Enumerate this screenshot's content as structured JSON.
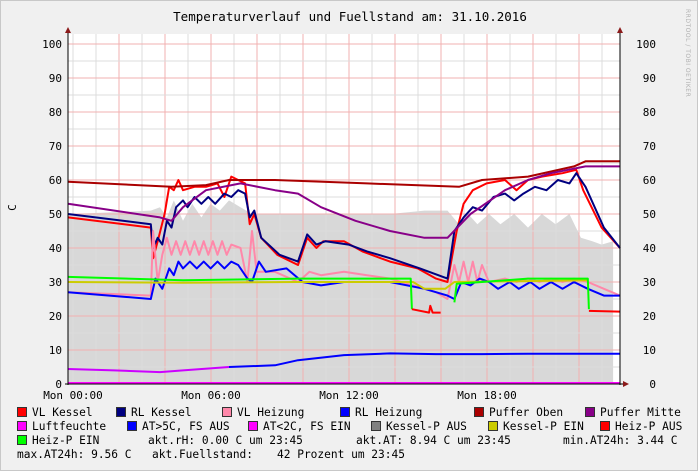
{
  "chart_data": {
    "type": "line",
    "title": "Temperaturverlauf und Fuellstand am: 31.10.2016",
    "ylabel": "C",
    "watermark": "RRDTOOL / TOBI OETIKER",
    "ylim": [
      0,
      100
    ],
    "yticks": [
      "0",
      "10",
      "20",
      "30",
      "40",
      "50",
      "60",
      "70",
      "80",
      "90",
      "100"
    ],
    "xlim_hours": [
      0,
      24
    ],
    "xticks": [
      {
        "h": 0,
        "label": "Mon 00:00"
      },
      {
        "h": 6,
        "label": "Mon 06:00"
      },
      {
        "h": 12,
        "label": "Mon 12:00"
      },
      {
        "h": 18,
        "label": "Mon 18:00"
      }
    ],
    "grid": true,
    "area": {
      "name": "Fuellstand",
      "color": "#d8d8d8",
      "points": [
        [
          0,
          50
        ],
        [
          2,
          50.5
        ],
        [
          3.6,
          51
        ],
        [
          4,
          52
        ],
        [
          4.3,
          49
        ],
        [
          4.6,
          54
        ],
        [
          5,
          48
        ],
        [
          5.4,
          53
        ],
        [
          5.8,
          49
        ],
        [
          6.2,
          53
        ],
        [
          6.6,
          51
        ],
        [
          7,
          54
        ],
        [
          7.5,
          52
        ],
        [
          8,
          50
        ],
        [
          9,
          50
        ],
        [
          10,
          50
        ],
        [
          12,
          50
        ],
        [
          14,
          50
        ],
        [
          15.5,
          51
        ],
        [
          16.5,
          51
        ],
        [
          17,
          47
        ],
        [
          17.4,
          50
        ],
        [
          17.8,
          47
        ],
        [
          18.3,
          50
        ],
        [
          18.8,
          47
        ],
        [
          19.4,
          50
        ],
        [
          20,
          46
        ],
        [
          20.6,
          50
        ],
        [
          21.2,
          47
        ],
        [
          21.8,
          50
        ],
        [
          22.3,
          43
        ],
        [
          22.8,
          42
        ],
        [
          23.2,
          41
        ],
        [
          23.7,
          42
        ]
      ]
    },
    "series": [
      {
        "name": "VL Kessel",
        "color": "#ff0000",
        "points": [
          [
            0,
            49
          ],
          [
            3.6,
            46
          ],
          [
            3.7,
            37
          ],
          [
            3.9,
            42
          ],
          [
            4.2,
            50
          ],
          [
            4.4,
            58
          ],
          [
            4.6,
            57
          ],
          [
            4.8,
            60
          ],
          [
            5,
            57
          ],
          [
            5.5,
            58
          ],
          [
            6,
            58
          ],
          [
            6.5,
            59
          ],
          [
            6.8,
            55
          ],
          [
            7.1,
            61
          ],
          [
            7.4,
            60
          ],
          [
            7.7,
            59
          ],
          [
            7.9,
            47
          ],
          [
            8.1,
            50
          ],
          [
            8.4,
            43
          ],
          [
            9.1,
            38
          ],
          [
            10,
            35
          ],
          [
            10.4,
            43
          ],
          [
            10.8,
            40
          ],
          [
            11.1,
            42
          ],
          [
            12,
            42
          ],
          [
            12.8,
            39
          ],
          [
            14,
            36
          ],
          [
            15.2,
            34
          ],
          [
            16,
            31
          ],
          [
            16.5,
            30
          ],
          [
            16.9,
            45
          ],
          [
            17.2,
            53
          ],
          [
            17.6,
            57
          ],
          [
            18.2,
            59
          ],
          [
            19,
            60
          ],
          [
            19.5,
            57
          ],
          [
            20,
            60
          ],
          [
            20.6,
            61
          ],
          [
            21.5,
            62
          ],
          [
            22.1,
            63
          ],
          [
            22.4,
            57
          ],
          [
            23.2,
            46
          ],
          [
            24,
            40
          ]
        ]
      },
      {
        "name": "RL Kessel",
        "color": "#000080",
        "points": [
          [
            0,
            50
          ],
          [
            3.6,
            47
          ],
          [
            3.7,
            40
          ],
          [
            3.9,
            43
          ],
          [
            4.1,
            41
          ],
          [
            4.3,
            48
          ],
          [
            4.5,
            46
          ],
          [
            4.7,
            52
          ],
          [
            5,
            54
          ],
          [
            5.2,
            52
          ],
          [
            5.5,
            55
          ],
          [
            5.8,
            53
          ],
          [
            6.1,
            55
          ],
          [
            6.4,
            53
          ],
          [
            6.8,
            56
          ],
          [
            7.1,
            55
          ],
          [
            7.4,
            57
          ],
          [
            7.7,
            56
          ],
          [
            7.9,
            49
          ],
          [
            8.1,
            51
          ],
          [
            8.4,
            43
          ],
          [
            9.2,
            38
          ],
          [
            10,
            36
          ],
          [
            10.4,
            44
          ],
          [
            10.8,
            41
          ],
          [
            11.2,
            42
          ],
          [
            12.2,
            41
          ],
          [
            13,
            39
          ],
          [
            14,
            37
          ],
          [
            15.3,
            34
          ],
          [
            16.5,
            31
          ],
          [
            16.8,
            45
          ],
          [
            17.2,
            49
          ],
          [
            17.6,
            52
          ],
          [
            18,
            51
          ],
          [
            18.5,
            55
          ],
          [
            19,
            56
          ],
          [
            19.4,
            54
          ],
          [
            19.8,
            56
          ],
          [
            20.3,
            58
          ],
          [
            20.8,
            57
          ],
          [
            21.3,
            60
          ],
          [
            21.8,
            59
          ],
          [
            22.1,
            62
          ],
          [
            22.5,
            58
          ],
          [
            23.3,
            46
          ],
          [
            24,
            40
          ]
        ]
      },
      {
        "name": "VL Heizung",
        "color": "#ff88aa",
        "points": [
          [
            0,
            27
          ],
          [
            3.6,
            26
          ],
          [
            3.7,
            45
          ],
          [
            3.9,
            30
          ],
          [
            4.1,
            38
          ],
          [
            4.3,
            43
          ],
          [
            4.5,
            38
          ],
          [
            4.7,
            42
          ],
          [
            4.9,
            38
          ],
          [
            5.1,
            42
          ],
          [
            5.3,
            38
          ],
          [
            5.5,
            42
          ],
          [
            5.7,
            38
          ],
          [
            5.9,
            42
          ],
          [
            6.1,
            38
          ],
          [
            6.3,
            42
          ],
          [
            6.5,
            38
          ],
          [
            6.7,
            42
          ],
          [
            6.9,
            38
          ],
          [
            7.1,
            41
          ],
          [
            7.5,
            40
          ],
          [
            7.8,
            30
          ],
          [
            8,
            45
          ],
          [
            8.2,
            33
          ],
          [
            9,
            33
          ],
          [
            10,
            30
          ],
          [
            10.5,
            33
          ],
          [
            11,
            32
          ],
          [
            12,
            33
          ],
          [
            13,
            32
          ],
          [
            14,
            31
          ],
          [
            15,
            29
          ],
          [
            16,
            27
          ],
          [
            16.5,
            25
          ],
          [
            16.8,
            35
          ],
          [
            17,
            30
          ],
          [
            17.2,
            36
          ],
          [
            17.4,
            30
          ],
          [
            17.6,
            36
          ],
          [
            17.8,
            30
          ],
          [
            18,
            35
          ],
          [
            18.3,
            30
          ],
          [
            19,
            31
          ],
          [
            19.5,
            30
          ],
          [
            20,
            31
          ],
          [
            20.5,
            30
          ],
          [
            21,
            31
          ],
          [
            21.5,
            30
          ],
          [
            22,
            31
          ],
          [
            22.6,
            30
          ],
          [
            23.3,
            28
          ],
          [
            24,
            26
          ]
        ]
      },
      {
        "name": "RL Heizung",
        "color": "#0000ff",
        "points": [
          [
            0,
            27
          ],
          [
            3.6,
            25
          ],
          [
            3.8,
            31
          ],
          [
            4.1,
            28
          ],
          [
            4.4,
            34
          ],
          [
            4.6,
            32
          ],
          [
            4.8,
            36
          ],
          [
            5,
            34
          ],
          [
            5.3,
            36
          ],
          [
            5.6,
            34
          ],
          [
            5.9,
            36
          ],
          [
            6.2,
            34
          ],
          [
            6.5,
            36
          ],
          [
            6.8,
            34
          ],
          [
            7.1,
            36
          ],
          [
            7.4,
            35
          ],
          [
            7.8,
            31
          ],
          [
            8,
            30
          ],
          [
            8.3,
            36
          ],
          [
            8.6,
            33
          ],
          [
            9.5,
            34
          ],
          [
            10.2,
            30
          ],
          [
            11,
            29
          ],
          [
            12,
            30
          ],
          [
            14,
            30
          ],
          [
            15.5,
            28
          ],
          [
            16.5,
            26
          ],
          [
            16.8,
            25
          ],
          [
            17.1,
            30
          ],
          [
            17.5,
            29
          ],
          [
            17.9,
            31
          ],
          [
            18.3,
            30
          ],
          [
            18.7,
            28
          ],
          [
            19.2,
            30
          ],
          [
            19.6,
            28
          ],
          [
            20.1,
            30
          ],
          [
            20.5,
            28
          ],
          [
            21,
            30
          ],
          [
            21.5,
            28
          ],
          [
            22,
            30
          ],
          [
            22.6,
            28
          ],
          [
            23.3,
            26
          ],
          [
            24,
            26
          ]
        ]
      },
      {
        "name": "Puffer Oben",
        "color": "#aa0000",
        "points": [
          [
            0,
            59.5
          ],
          [
            4.5,
            58
          ],
          [
            6,
            58.5
          ],
          [
            7,
            60
          ],
          [
            9,
            60
          ],
          [
            13,
            59
          ],
          [
            17,
            58
          ],
          [
            18,
            60
          ],
          [
            20,
            61
          ],
          [
            22,
            64
          ],
          [
            22.5,
            65.5
          ],
          [
            24,
            65.5
          ]
        ]
      },
      {
        "name": "Puffer Mitte",
        "color": "#880088",
        "points": [
          [
            0,
            53
          ],
          [
            4,
            49
          ],
          [
            4.5,
            48
          ],
          [
            5,
            52
          ],
          [
            6,
            57
          ],
          [
            7.5,
            59
          ],
          [
            9,
            57
          ],
          [
            10,
            56
          ],
          [
            11,
            52
          ],
          [
            12.5,
            48
          ],
          [
            14,
            45
          ],
          [
            15.5,
            43
          ],
          [
            16.5,
            43
          ],
          [
            17.5,
            50
          ],
          [
            19,
            57
          ],
          [
            20,
            60
          ],
          [
            21,
            62
          ],
          [
            22.5,
            64
          ],
          [
            24,
            64
          ]
        ]
      },
      {
        "name": "Luftfeuchte",
        "color": "#ff00ff",
        "points": [
          [
            0,
            0.3
          ],
          [
            24,
            0.3
          ]
        ]
      },
      {
        "name": "AT<2C, FS EIN",
        "color": "#cc00ff",
        "points": [
          [
            0,
            4.4
          ],
          [
            2,
            4
          ],
          [
            4,
            3.5
          ],
          [
            5,
            4
          ],
          [
            7,
            5
          ]
        ]
      },
      {
        "name": "AT>5C, FS AUS",
        "color": "#0000ff",
        "points": [
          [
            7,
            5
          ],
          [
            9,
            5.5
          ],
          [
            10,
            7
          ],
          [
            12,
            8.5
          ],
          [
            14,
            9
          ],
          [
            16,
            8.8
          ],
          [
            18,
            8.8
          ],
          [
            20,
            8.9
          ],
          [
            24,
            8.9
          ]
        ]
      },
      {
        "name": "Kessel-P EIN",
        "color": "#cccc00",
        "points": [
          [
            0,
            30
          ],
          [
            5,
            29.8
          ],
          [
            10,
            30
          ],
          [
            15,
            30
          ],
          [
            15.5,
            28
          ],
          [
            16.4,
            28
          ],
          [
            16.8,
            30
          ],
          [
            22.6,
            30.5
          ]
        ]
      },
      {
        "name": "Heiz-P EIN",
        "color": "#00ff00",
        "points": [
          [
            0,
            31.5
          ],
          [
            5,
            30.5
          ],
          [
            10,
            31
          ],
          [
            14.9,
            31
          ],
          [
            14.95,
            22
          ]
        ]
      },
      {
        "name": "Heiz-P EIN",
        "color": "#00ff00",
        "points": [
          [
            16.8,
            24
          ],
          [
            16.9,
            29.5
          ],
          [
            18,
            30
          ],
          [
            20,
            31
          ],
          [
            22.6,
            31
          ],
          [
            22.65,
            22
          ]
        ]
      },
      {
        "name": "Heiz-P AUS",
        "color": "#ff0000",
        "points": [
          [
            14.95,
            22
          ],
          [
            15.7,
            21
          ],
          [
            15.75,
            23
          ],
          [
            15.85,
            21
          ],
          [
            16.2,
            21
          ]
        ]
      },
      {
        "name": "Heiz-P AUS",
        "color": "#ff0000",
        "points": [
          [
            22.65,
            21.5
          ],
          [
            24,
            21.3
          ]
        ]
      }
    ]
  },
  "legend": {
    "items": [
      {
        "label": "VL Kessel",
        "color": "#ff0000"
      },
      {
        "label": "RL Kessel",
        "color": "#000080"
      },
      {
        "label": "VL Heizung",
        "color": "#ff88aa"
      },
      {
        "label": "RL Heizung",
        "color": "#0000ff"
      },
      {
        "label": "Puffer Oben",
        "color": "#aa0000"
      },
      {
        "label": "Puffer Mitte",
        "color": "#880088"
      },
      {
        "label": "Luftfeuchte",
        "color": "#ff00ff"
      },
      {
        "label": "AT>5C, FS AUS",
        "color": "#0000ff"
      },
      {
        "label": "AT<2C, FS EIN",
        "color": "#ff00ff"
      },
      {
        "label": "Kessel-P AUS",
        "color": "#808080"
      },
      {
        "label": "Kessel-P EIN",
        "color": "#cccc00"
      },
      {
        "label": "Heiz-P AUS",
        "color": "#ff0000"
      },
      {
        "label": "Heiz-P EIN",
        "color": "#00ff00"
      }
    ],
    "stats": {
      "akt_rh": "akt.rH: 0.00 C um 23:45",
      "akt_at": "akt.AT: 8.94 C um 23:45",
      "min_at": "min.AT24h: 3.44 C",
      "max_at": "max.AT24h: 9.56 C",
      "fuell_label": "akt.Fuellstand:",
      "fuell_value": "42 Prozent um 23:45"
    }
  }
}
